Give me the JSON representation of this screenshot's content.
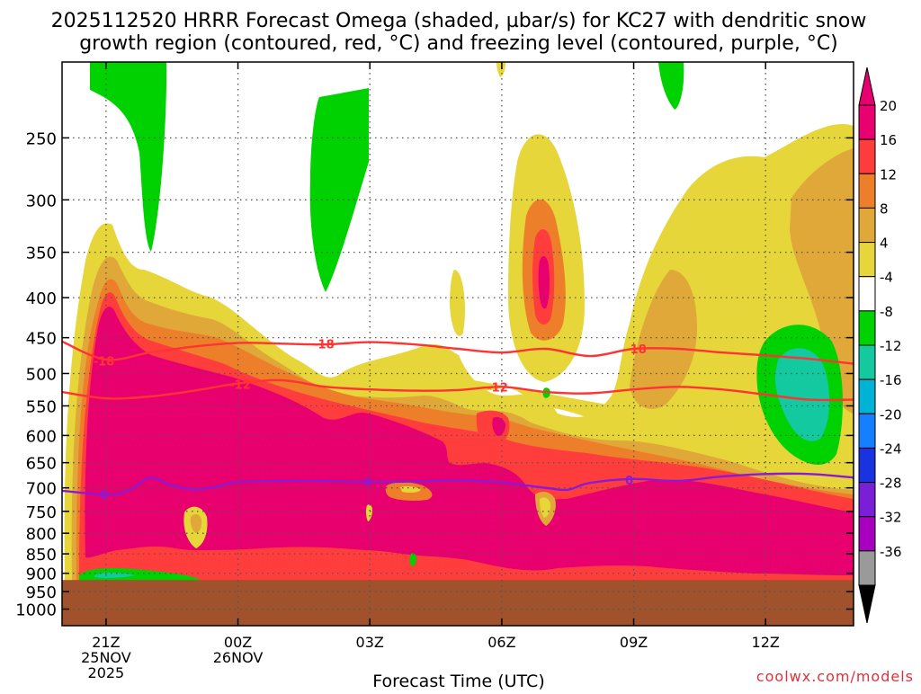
{
  "chart_data": {
    "type": "heatmap",
    "title_lines": [
      "2025112520 HRRR Forecast Omega (shaded, µbar/s) for KC27 with dendritic snow",
      "growth region (contoured, red, °C) and freezing level (contoured, purple, °C)"
    ],
    "xlabel": "Forecast Time (UTC)",
    "credit": "coolwx.com/models",
    "y_axis": {
      "scale": "log-pressure",
      "range_hpa": [
        1050,
        200
      ],
      "inverted": true,
      "ticks": [
        250,
        300,
        350,
        400,
        450,
        500,
        550,
        600,
        650,
        700,
        750,
        800,
        850,
        900,
        950,
        1000
      ],
      "tick_labels": [
        "250",
        "300",
        "350",
        "400",
        "450",
        "500",
        "550",
        "600",
        "650",
        "700",
        "750",
        "800",
        "850",
        "900",
        "950",
        "1000"
      ]
    },
    "x_axis": {
      "range_hours": [
        -1,
        17
      ],
      "ticks": [
        {
          "hour": 0,
          "lines": [
            "21Z",
            "25NOV",
            "2025"
          ]
        },
        {
          "hour": 3,
          "lines": [
            "00Z",
            "26NOV"
          ]
        },
        {
          "hour": 6,
          "lines": [
            "03Z"
          ]
        },
        {
          "hour": 9,
          "lines": [
            "06Z"
          ]
        },
        {
          "hour": 12,
          "lines": [
            "09Z"
          ]
        },
        {
          "hour": 15,
          "lines": [
            "12Z"
          ]
        }
      ]
    },
    "grid": true,
    "colorbar": {
      "placement": "right",
      "labels": [
        "20",
        "16",
        "12",
        "8",
        "4",
        "-4",
        "-8",
        "-12",
        "-16",
        "-20",
        "-24",
        "-28",
        "-32",
        "-36"
      ],
      "levels": [
        20,
        16,
        12,
        8,
        4,
        -4,
        -8,
        -12,
        -16,
        -20,
        -24,
        -28,
        -32,
        -36
      ],
      "colors": [
        "#e8006e",
        "#ff3d3d",
        "#ee7f2a",
        "#e0a838",
        "#e6d63a",
        "#ffffff",
        "#00d100",
        "#12c9a0",
        "#00b3d6",
        "#1580ff",
        "#1b32e0",
        "#7a1ed8",
        "#a900c0",
        "#9a9a9a"
      ],
      "over_color": "#e8006e",
      "under_color": "#000000"
    },
    "ground": {
      "above_hpa": 918,
      "color": "#a0522d"
    },
    "contours": [
      {
        "label": "-18",
        "color": "#ff3333",
        "points": [
          [
            -1,
            455
          ],
          [
            0,
            480
          ],
          [
            1,
            470
          ],
          [
            2,
            462
          ],
          [
            3,
            457
          ],
          [
            4,
            458
          ],
          [
            5,
            459
          ],
          [
            6,
            456
          ],
          [
            7,
            459
          ],
          [
            8,
            465
          ],
          [
            9,
            470
          ],
          [
            10,
            465
          ],
          [
            11,
            475
          ],
          [
            12,
            465
          ],
          [
            13,
            465
          ],
          [
            14,
            470
          ],
          [
            15,
            474
          ],
          [
            16,
            479
          ],
          [
            17,
            486
          ]
        ],
        "label_positions": [
          [
            -0.05,
            482
          ],
          [
            4.95,
            458
          ],
          [
            12.05,
            465
          ]
        ]
      },
      {
        "label": "-12",
        "color": "#ff3333",
        "points": [
          [
            -1,
            528
          ],
          [
            0,
            538
          ],
          [
            1,
            535
          ],
          [
            2,
            526
          ],
          [
            3,
            515
          ],
          [
            4,
            510
          ],
          [
            5,
            520
          ],
          [
            6,
            524
          ],
          [
            7,
            526
          ],
          [
            8,
            525
          ],
          [
            9,
            520
          ],
          [
            10,
            528
          ],
          [
            11,
            530
          ],
          [
            12,
            524
          ],
          [
            13,
            520
          ],
          [
            14,
            524
          ],
          [
            15,
            532
          ],
          [
            16,
            540
          ],
          [
            17,
            540
          ]
        ],
        "label_positions": [
          [
            3.05,
            516
          ],
          [
            8.9,
            520
          ]
        ]
      },
      {
        "label": "0",
        "color": "#8b1ad6",
        "points": [
          [
            -1,
            706
          ],
          [
            0,
            714
          ],
          [
            0.5,
            706
          ],
          [
            1,
            680
          ],
          [
            1.5,
            695
          ],
          [
            2,
            703
          ],
          [
            2.5,
            698
          ],
          [
            3,
            688
          ],
          [
            4,
            686
          ],
          [
            5,
            686
          ],
          [
            6,
            688
          ],
          [
            7,
            687
          ],
          [
            8,
            685
          ],
          [
            9,
            689
          ],
          [
            10,
            700
          ],
          [
            10.5,
            704
          ],
          [
            11,
            690
          ],
          [
            12,
            682
          ],
          [
            13,
            686
          ],
          [
            14,
            677
          ],
          [
            15,
            672
          ],
          [
            16,
            672
          ],
          [
            17,
            679
          ]
        ],
        "label_positions": [
          [
            -0.05,
            714
          ],
          [
            5.95,
            688
          ],
          [
            11.9,
            684
          ]
        ]
      }
    ]
  }
}
